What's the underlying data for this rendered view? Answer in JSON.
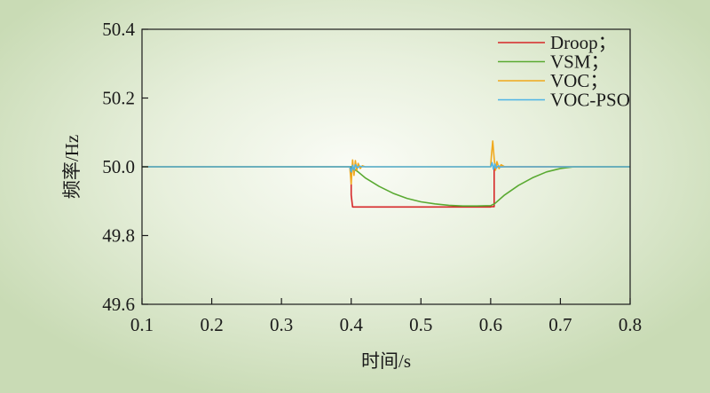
{
  "chart_data": {
    "type": "line",
    "title": "",
    "xlabel": "时间/s",
    "ylabel": "频率/Hz",
    "xlim": [
      0.1,
      0.8
    ],
    "ylim": [
      49.6,
      50.4
    ],
    "xticks": [
      0.1,
      0.2,
      0.3,
      0.4,
      0.5,
      0.6,
      0.7,
      0.8
    ],
    "xtick_labels": [
      "0.1",
      "0.2",
      "0.3",
      "0.4",
      "0.5",
      "0.6",
      "0.7",
      "0.8"
    ],
    "yticks": [
      49.6,
      49.8,
      50.0,
      50.2,
      50.4
    ],
    "ytick_labels": [
      "49.6",
      "49.8",
      "50.0",
      "50.2",
      "50.4"
    ],
    "grid": false,
    "legend_position": "top-right",
    "series": [
      {
        "name": "Droop；",
        "color": "#d62728",
        "x": [
          0.1,
          0.4,
          0.4,
          0.402,
          0.6,
          0.6,
          0.605,
          0.605,
          0.8
        ],
        "y": [
          50.0,
          50.0,
          49.918,
          49.883,
          49.883,
          49.884,
          49.884,
          50.0,
          50.0
        ]
      },
      {
        "name": "VSM；",
        "color": "#5aaa32",
        "x": [
          0.1,
          0.4,
          0.403,
          0.41,
          0.42,
          0.44,
          0.46,
          0.48,
          0.5,
          0.52,
          0.54,
          0.56,
          0.58,
          0.6,
          0.606,
          0.62,
          0.64,
          0.66,
          0.68,
          0.7,
          0.72,
          0.74,
          0.8
        ],
        "y": [
          50.0,
          50.0,
          49.995,
          49.985,
          49.968,
          49.943,
          49.923,
          49.908,
          49.898,
          49.892,
          49.888,
          49.886,
          49.886,
          49.887,
          49.893,
          49.918,
          49.946,
          49.968,
          49.985,
          49.995,
          50.0,
          50.0,
          50.0
        ]
      },
      {
        "name": "VOC；",
        "color": "#f0a81c",
        "x": [
          0.1,
          0.398,
          0.4,
          0.402,
          0.404,
          0.406,
          0.408,
          0.41,
          0.413,
          0.416,
          0.42,
          0.425,
          0.6,
          0.601,
          0.603,
          0.605,
          0.607,
          0.609,
          0.612,
          0.615,
          0.62,
          0.625,
          0.8
        ],
        "y": [
          50.0,
          50.0,
          49.95,
          50.02,
          49.975,
          50.018,
          49.99,
          50.01,
          49.995,
          50.003,
          50.0,
          50.0,
          50.0,
          50.03,
          50.075,
          50.025,
          49.99,
          50.015,
          49.995,
          50.006,
          50.0,
          50.0,
          50.0
        ]
      },
      {
        "name": "VOC-PSO",
        "color": "#4db4e6",
        "x": [
          0.1,
          0.398,
          0.4,
          0.402,
          0.404,
          0.406,
          0.409,
          0.412,
          0.416,
          0.42,
          0.6,
          0.602,
          0.604,
          0.606,
          0.608,
          0.611,
          0.614,
          0.618,
          0.8
        ],
        "y": [
          50.0,
          50.0,
          49.985,
          50.004,
          49.991,
          50.006,
          49.997,
          50.002,
          50.0,
          50.0,
          50.0,
          50.012,
          49.993,
          50.008,
          49.996,
          50.003,
          49.999,
          50.0,
          50.0
        ]
      }
    ]
  }
}
